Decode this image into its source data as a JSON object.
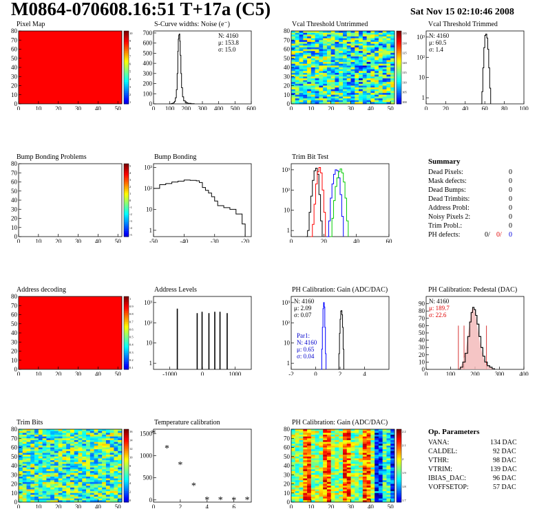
{
  "header": {
    "title": "M0864-070608.16:51 T+17a (C5)",
    "date": "Sat Nov 15 02:10:46 2008"
  },
  "summary": {
    "title": "Summary",
    "rows": [
      {
        "label": "Dead Pixels:",
        "value": "0"
      },
      {
        "label": "Mask defects:",
        "value": "0"
      },
      {
        "label": "Dead Bumps:",
        "value": "0"
      },
      {
        "label": "Dead Trimbits:",
        "value": "0"
      },
      {
        "label": "Address Probl:",
        "value": "0"
      },
      {
        "label": "Noisy Pixels 2:",
        "value": "0"
      },
      {
        "label": "Trim Probl.:",
        "value": "0"
      }
    ],
    "ph_defects": {
      "label": "PH defects:",
      "v1": "0/",
      "v2": "0/",
      "v3": "0"
    }
  },
  "op_params": {
    "title": "Op. Parameters",
    "rows": [
      {
        "label": "VANA:",
        "value": "134 DAC"
      },
      {
        "label": "CALDEL:",
        "value": "92 DAC"
      },
      {
        "label": "VTHR:",
        "value": "98 DAC"
      },
      {
        "label": "VTRIM:",
        "value": "139 DAC"
      },
      {
        "label": "IBIAS_DAC:",
        "value": "96 DAC"
      },
      {
        "label": "VOFFSETOP:",
        "value": "57 DAC"
      }
    ]
  },
  "chart_data": [
    {
      "id": "pixel-map",
      "type": "heatmap",
      "title": "Pixel Map",
      "fill": "uniform-red",
      "xlim": [
        0,
        52
      ],
      "ylim": [
        0,
        80
      ],
      "xticks": [
        0,
        10,
        20,
        30,
        40,
        50
      ],
      "yticks": [
        0,
        10,
        20,
        30,
        40,
        50,
        60,
        70,
        80
      ],
      "palette": {
        "ticks": [
          "10",
          "9",
          "8",
          "7",
          "6",
          "5",
          "4",
          "3",
          "2",
          "1"
        ]
      }
    },
    {
      "id": "scurve-noise",
      "type": "bar",
      "title": "S-Curve widths: Noise (e⁻)",
      "xlim": [
        0,
        600
      ],
      "ylim": [
        0,
        720
      ],
      "xticks": [
        0,
        100,
        200,
        300,
        400,
        500,
        600
      ],
      "yticks": [
        0,
        100,
        200,
        300,
        400,
        500,
        600,
        700
      ],
      "stats": [
        "N: 4160",
        "μ: 153.8",
        "σ: 15.0"
      ],
      "series": [
        {
          "color": "#000000",
          "bins": [
            [
              95,
              0
            ],
            [
              110,
              4
            ],
            [
              120,
              10
            ],
            [
              128,
              25
            ],
            [
              134,
              60
            ],
            [
              140,
              140
            ],
            [
              145,
              300
            ],
            [
              149,
              520
            ],
            [
              152,
              640
            ],
            [
              155,
              680
            ],
            [
              158,
              690
            ],
            [
              161,
              620
            ],
            [
              164,
              480
            ],
            [
              168,
              300
            ],
            [
              172,
              160
            ],
            [
              178,
              70
            ],
            [
              185,
              30
            ],
            [
              195,
              12
            ],
            [
              210,
              5
            ],
            [
              230,
              2
            ],
            [
              250,
              0
            ]
          ]
        }
      ]
    },
    {
      "id": "vcal-untrimmed",
      "type": "heatmap",
      "title": "Vcal Threshold Untrimmed",
      "fill": "noise",
      "xlim": [
        0,
        52
      ],
      "ylim": [
        0,
        80
      ],
      "xticks": [
        0,
        10,
        20,
        30,
        40,
        50
      ],
      "yticks": [
        0,
        10,
        20,
        30,
        40,
        50,
        60,
        70,
        80
      ],
      "palette": {
        "ticks": [
          "135",
          "130",
          "125",
          "120",
          "115",
          "110",
          "105",
          "100"
        ]
      }
    },
    {
      "id": "vcal-trimmed",
      "type": "bar",
      "title": "Vcal Threshold Trimmed",
      "logy": true,
      "xlim": [
        0,
        100
      ],
      "ylim": [
        0.5,
        2000
      ],
      "xticks": [
        0,
        20,
        40,
        60,
        80,
        100
      ],
      "yticks": [
        1,
        10,
        100,
        1000
      ],
      "yticklabels": [
        "1",
        "10",
        "10²",
        "10³"
      ],
      "stats": [
        "N: 4160",
        "μ: 60.5",
        "σ: 1.4"
      ],
      "series": [
        {
          "color": "#000000",
          "bins": [
            [
              56,
              0
            ],
            [
              57,
              2
            ],
            [
              58,
              30
            ],
            [
              59,
              300
            ],
            [
              60,
              1200
            ],
            [
              61,
              1400
            ],
            [
              62,
              900
            ],
            [
              63,
              250
            ],
            [
              64,
              30
            ],
            [
              65,
              3
            ],
            [
              66,
              0
            ]
          ]
        }
      ]
    },
    {
      "id": "bump-bonding-problems",
      "type": "heatmap",
      "title": "Bump Bonding Problems",
      "fill": "empty",
      "xlim": [
        0,
        52
      ],
      "ylim": [
        0,
        80
      ],
      "xticks": [
        0,
        10,
        20,
        30,
        40,
        50
      ],
      "yticks": [
        0,
        10,
        20,
        30,
        40,
        50,
        60,
        70,
        80
      ],
      "palette": {
        "ticks": [
          "5",
          "4",
          "3",
          "2",
          "1",
          "0",
          "-1",
          "-2",
          "-3",
          "-4",
          "-5"
        ]
      }
    },
    {
      "id": "bump-bonding",
      "type": "bar",
      "title": "Bump Bonding",
      "logy": true,
      "xlim": [
        -50,
        -18
      ],
      "ylim": [
        0.5,
        1500
      ],
      "xticks": [
        -50,
        -40,
        -30,
        -20
      ],
      "yticks": [
        1,
        10,
        100,
        1000
      ],
      "yticklabels": [
        "1",
        "10",
        "10²",
        "10³"
      ],
      "series": [
        {
          "color": "#000000",
          "bins": [
            [
              -50,
              100
            ],
            [
              -48,
              150
            ],
            [
              -46,
              170
            ],
            [
              -44,
              200
            ],
            [
              -42,
              220
            ],
            [
              -40,
              250
            ],
            [
              -38,
              240
            ],
            [
              -36,
              230
            ],
            [
              -35,
              190
            ],
            [
              -34,
              110
            ],
            [
              -33,
              80
            ],
            [
              -32,
              60
            ],
            [
              -31,
              40
            ],
            [
              -30,
              25
            ],
            [
              -29,
              15
            ],
            [
              -27,
              12
            ],
            [
              -25,
              10
            ],
            [
              -23,
              6
            ],
            [
              -21,
              2
            ],
            [
              -20,
              0.5
            ]
          ]
        }
      ]
    },
    {
      "id": "trim-bit-test",
      "type": "bar",
      "title": "Trim Bit Test",
      "logy": true,
      "xlim": [
        0,
        60
      ],
      "ylim": [
        0.5,
        2000
      ],
      "xticks": [
        0,
        20,
        40,
        60
      ],
      "yticks": [
        1,
        10,
        100,
        1000
      ],
      "yticklabels": [
        "1",
        "10",
        "10²",
        "10³"
      ],
      "series": [
        {
          "color": "#000000",
          "bins": [
            [
              9,
              0.5
            ],
            [
              10,
              1
            ],
            [
              11,
              8
            ],
            [
              12,
              50
            ],
            [
              13,
              300
            ],
            [
              14,
              900
            ],
            [
              15,
              1200
            ],
            [
              16,
              600
            ],
            [
              17,
              60
            ],
            [
              18,
              3
            ],
            [
              19,
              0.5
            ]
          ]
        },
        {
          "color": "#ff0000",
          "bins": [
            [
              12,
              0.5
            ],
            [
              13,
              2
            ],
            [
              14,
              20
            ],
            [
              15,
              200
            ],
            [
              16,
              800
            ],
            [
              17,
              1300
            ],
            [
              18,
              700
            ],
            [
              19,
              100
            ],
            [
              20,
              8
            ],
            [
              21,
              0.5
            ]
          ]
        },
        {
          "color": "#0000ff",
          "bins": [
            [
              22,
              0.5
            ],
            [
              23,
              3
            ],
            [
              24,
              40
            ],
            [
              25,
              200
            ],
            [
              26,
              600
            ],
            [
              27,
              1000
            ],
            [
              28,
              900
            ],
            [
              29,
              400
            ],
            [
              30,
              60
            ],
            [
              31,
              5
            ],
            [
              32,
              0.5
            ]
          ]
        },
        {
          "color": "#00cc00",
          "bins": [
            [
              24,
              0.5
            ],
            [
              25,
              4
            ],
            [
              26,
              30
            ],
            [
              27,
              150
            ],
            [
              28,
              400
            ],
            [
              29,
              800
            ],
            [
              30,
              1100
            ],
            [
              31,
              700
            ],
            [
              32,
              250
            ],
            [
              33,
              40
            ],
            [
              34,
              3
            ],
            [
              35,
              0.5
            ]
          ]
        }
      ]
    },
    {
      "id": "address-decoding",
      "type": "heatmap",
      "title": "Address decoding",
      "fill": "uniform-red",
      "xlim": [
        0,
        52
      ],
      "ylim": [
        0,
        80
      ],
      "xticks": [
        0,
        10,
        20,
        30,
        40,
        50
      ],
      "yticks": [
        0,
        10,
        20,
        30,
        40,
        50,
        60,
        70,
        80
      ],
      "palette": {
        "ticks": [
          "1",
          "0.9",
          "0.8",
          "0.7",
          "0.6",
          "0.5",
          "0.4",
          "0.3",
          "0.2",
          "0.1"
        ]
      }
    },
    {
      "id": "address-levels",
      "type": "bar",
      "title": "Address Levels",
      "logy": true,
      "xlim": [
        -1500,
        1500
      ],
      "ylim": [
        0.5,
        2000
      ],
      "xticks": [
        -1000,
        0,
        1000
      ],
      "yticks": [
        1,
        10,
        100,
        1000
      ],
      "yticklabels": [
        "1",
        "10",
        "10²",
        "10³"
      ],
      "peaks": [
        -770,
        -160,
        -10,
        200,
        380,
        540,
        760
      ],
      "peak_values": [
        500,
        300,
        350,
        300,
        350,
        350,
        300
      ]
    },
    {
      "id": "ph-gain",
      "type": "bar",
      "title": "PH Calibration: Gain (ADC/DAC)",
      "logy": true,
      "xlim": [
        -2,
        6
      ],
      "ylim": [
        0.5,
        2000
      ],
      "xticks": [
        -2,
        0,
        2,
        4
      ],
      "yticks": [
        1,
        10,
        100,
        1000
      ],
      "yticklabels": [
        "1",
        "10",
        "10²",
        "10³"
      ],
      "stats": [
        "N: 4160",
        "μ: 2.09",
        "σ: 0.07"
      ],
      "stats2": [
        "Par1:",
        "N: 4160",
        "μ: 0.65",
        "σ: 0.04"
      ],
      "series": [
        {
          "color": "#000000",
          "bins": [
            [
              1.85,
              0.5
            ],
            [
              1.9,
              3
            ],
            [
              1.95,
              30
            ],
            [
              2.0,
              150
            ],
            [
              2.05,
              380
            ],
            [
              2.1,
              400
            ],
            [
              2.15,
              250
            ],
            [
              2.2,
              60
            ],
            [
              2.25,
              5
            ],
            [
              2.3,
              0.5
            ]
          ]
        },
        {
          "color": "#0000ff",
          "bins": [
            [
              0.45,
              0.5
            ],
            [
              0.5,
              5
            ],
            [
              0.55,
              60
            ],
            [
              0.6,
              500
            ],
            [
              0.65,
              1000
            ],
            [
              0.7,
              600
            ],
            [
              0.75,
              60
            ],
            [
              0.8,
              3
            ],
            [
              0.85,
              0.5
            ]
          ]
        }
      ]
    },
    {
      "id": "ph-pedestal",
      "type": "bar",
      "title": "PH Calibration: Pedestal (DAC)",
      "xlim": [
        0,
        400
      ],
      "ylim": [
        0,
        100
      ],
      "xticks": [
        0,
        100,
        200,
        300,
        400
      ],
      "yticks": [
        0,
        10,
        20,
        30,
        40,
        50,
        60,
        70,
        80,
        90
      ],
      "stats": [
        "N: 4160",
        "μ: 189.7",
        "σ: 22.6"
      ],
      "markers": [
        132,
        155,
        247
      ],
      "series": [
        {
          "color": "#000000",
          "bins": [
            [
              130,
              0
            ],
            [
              140,
              3
            ],
            [
              150,
              10
            ],
            [
              160,
              22
            ],
            [
              170,
              45
            ],
            [
              178,
              65
            ],
            [
              184,
              78
            ],
            [
              190,
              85
            ],
            [
              196,
              82
            ],
            [
              202,
              74
            ],
            [
              208,
              62
            ],
            [
              216,
              45
            ],
            [
              224,
              30
            ],
            [
              232,
              18
            ],
            [
              240,
              10
            ],
            [
              250,
              5
            ],
            [
              260,
              3
            ],
            [
              270,
              1
            ],
            [
              280,
              0
            ]
          ]
        }
      ]
    },
    {
      "id": "trim-bits",
      "type": "heatmap",
      "title": "Trim Bits",
      "fill": "noise-trim",
      "xlim": [
        0,
        52
      ],
      "ylim": [
        0,
        80
      ],
      "xticks": [
        0,
        10,
        20,
        30,
        40,
        50
      ],
      "yticks": [
        0,
        10,
        20,
        30,
        40,
        50,
        60,
        70,
        80
      ],
      "palette": {
        "ticks": [
          "16",
          "14",
          "12",
          "10",
          "8",
          "6",
          "4",
          "2",
          "0"
        ]
      }
    },
    {
      "id": "temperature-calibration",
      "type": "scatter",
      "title": "Temperature calibration",
      "xlim": [
        0,
        7.3
      ],
      "ylim": [
        -50,
        1600
      ],
      "xticks": [
        0,
        2,
        4,
        6
      ],
      "yticks": [
        0,
        500,
        1000,
        1500
      ],
      "x": [
        0,
        1,
        2,
        3,
        4,
        5,
        6,
        7
      ],
      "y": [
        1520,
        1180,
        810,
        330,
        10,
        10,
        5,
        10
      ]
    },
    {
      "id": "ph-gain-map",
      "type": "heatmap",
      "title": "PH Calibration: Gain (ADC/DAC)",
      "fill": "gain",
      "xlim": [
        0,
        52
      ],
      "ylim": [
        0,
        80
      ],
      "xticks": [
        0,
        10,
        20,
        30,
        40,
        50
      ],
      "yticks": [
        0,
        10,
        20,
        30,
        40,
        50,
        60,
        70,
        80
      ],
      "palette": {
        "ticks": [
          "2.2",
          "2.1",
          "2",
          "1.9",
          "1.8",
          "1.7"
        ]
      }
    }
  ]
}
